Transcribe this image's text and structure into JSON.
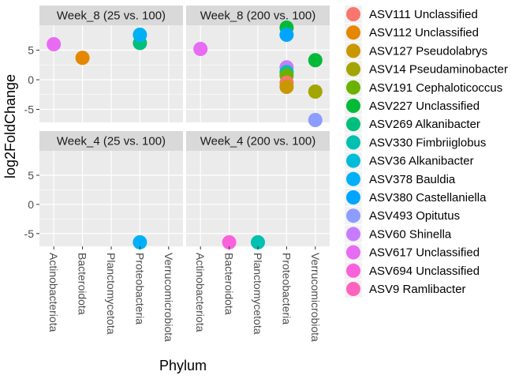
{
  "chart_data": {
    "type": "scatter",
    "xlabel": "Phylum",
    "ylabel": "log2FoldChange",
    "categories": [
      "Actinobacteriota",
      "Bacteroidota",
      "Planctomycetota",
      "Proteobacteria",
      "Verrucomicrobiota"
    ],
    "y_ticks": [
      "-5",
      "0",
      "5"
    ],
    "ylim": [
      -7.2,
      9.2
    ],
    "panels": [
      {
        "title": "Week_8 (25 vs. 100)",
        "points": [
          {
            "x": "Actinobacteriota",
            "y": 6.0,
            "series": "ASV617 Unclassified"
          },
          {
            "x": "Bacteroidota",
            "y": 3.7,
            "series": "ASV112 Unclassified"
          },
          {
            "x": "Proteobacteria",
            "y": 6.2,
            "series": "ASV269 Alkanibacter"
          },
          {
            "x": "Proteobacteria",
            "y": 7.6,
            "series": "ASV378 Bauldia"
          }
        ]
      },
      {
        "title": "Week_8 (200 vs. 100)",
        "points": [
          {
            "x": "Actinobacteriota",
            "y": 5.2,
            "series": "ASV617 Unclassified"
          },
          {
            "x": "Proteobacteria",
            "y": 8.8,
            "series": "ASV227 Unclassified"
          },
          {
            "x": "Proteobacteria",
            "y": 7.6,
            "series": "ASV380 Castellaniella"
          },
          {
            "x": "Proteobacteria",
            "y": 2.1,
            "series": "ASV60 Shinella"
          },
          {
            "x": "Proteobacteria",
            "y": 1.3,
            "series": "ASV330 Fimbriiglobus"
          },
          {
            "x": "Proteobacteria",
            "y": 0.7,
            "series": "ASV191 Cephaloticoccus"
          },
          {
            "x": "Proteobacteria",
            "y": -0.5,
            "series": "ASV111 Unclassified"
          },
          {
            "x": "Proteobacteria",
            "y": -1.2,
            "series": "ASV127 Pseudolabrys"
          },
          {
            "x": "Verrucomicrobiota",
            "y": 3.3,
            "series": "ASV227 Unclassified"
          },
          {
            "x": "Verrucomicrobiota",
            "y": -2.0,
            "series": "ASV14 Pseudaminobacter"
          },
          {
            "x": "Verrucomicrobiota",
            "y": -6.8,
            "series": "ASV493 Opitutus"
          }
        ]
      },
      {
        "title": "Week_4 (25 vs. 100)",
        "points": [
          {
            "x": "Proteobacteria",
            "y": -6.5,
            "series": "ASV378 Bauldia"
          }
        ]
      },
      {
        "title": "Week_4 (200 vs. 100)",
        "points": [
          {
            "x": "Bacteroidota",
            "y": -6.5,
            "series": "ASV694 Unclassified"
          },
          {
            "x": "Planctomycetota",
            "y": -6.5,
            "series": "ASV330 Fimbriiglobus"
          }
        ]
      }
    ],
    "series": [
      {
        "name": "ASV111 Unclassified",
        "color": "#F8766D"
      },
      {
        "name": "ASV112 Unclassified",
        "color": "#E58700"
      },
      {
        "name": "ASV127 Pseudolabrys",
        "color": "#C99800"
      },
      {
        "name": "ASV14 Pseudaminobacter",
        "color": "#A3A500"
      },
      {
        "name": "ASV191 Cephaloticoccus",
        "color": "#6BB100"
      },
      {
        "name": "ASV227 Unclassified",
        "color": "#00BA38"
      },
      {
        "name": "ASV269 Alkanibacter",
        "color": "#00BF7D"
      },
      {
        "name": "ASV330 Fimbriiglobus",
        "color": "#00C0AF"
      },
      {
        "name": "ASV36 Alkanibacter",
        "color": "#00BCD8"
      },
      {
        "name": "ASV378 Bauldia",
        "color": "#00B0F6"
      },
      {
        "name": "ASV380 Castellaniella",
        "color": "#00A5FF"
      },
      {
        "name": "ASV493 Opitutus",
        "color": "#8D9CFF"
      },
      {
        "name": "ASV60 Shinella",
        "color": "#C77CFF"
      },
      {
        "name": "ASV617 Unclassified",
        "color": "#E76BF3"
      },
      {
        "name": "ASV694 Unclassified",
        "color": "#FA62DB"
      },
      {
        "name": "ASV9 Ramlibacter",
        "color": "#FF62BC"
      }
    ],
    "legend_position": "right",
    "grid": true,
    "panel_background": "#EBEBEB",
    "strip_background": "#D9D9D9"
  }
}
